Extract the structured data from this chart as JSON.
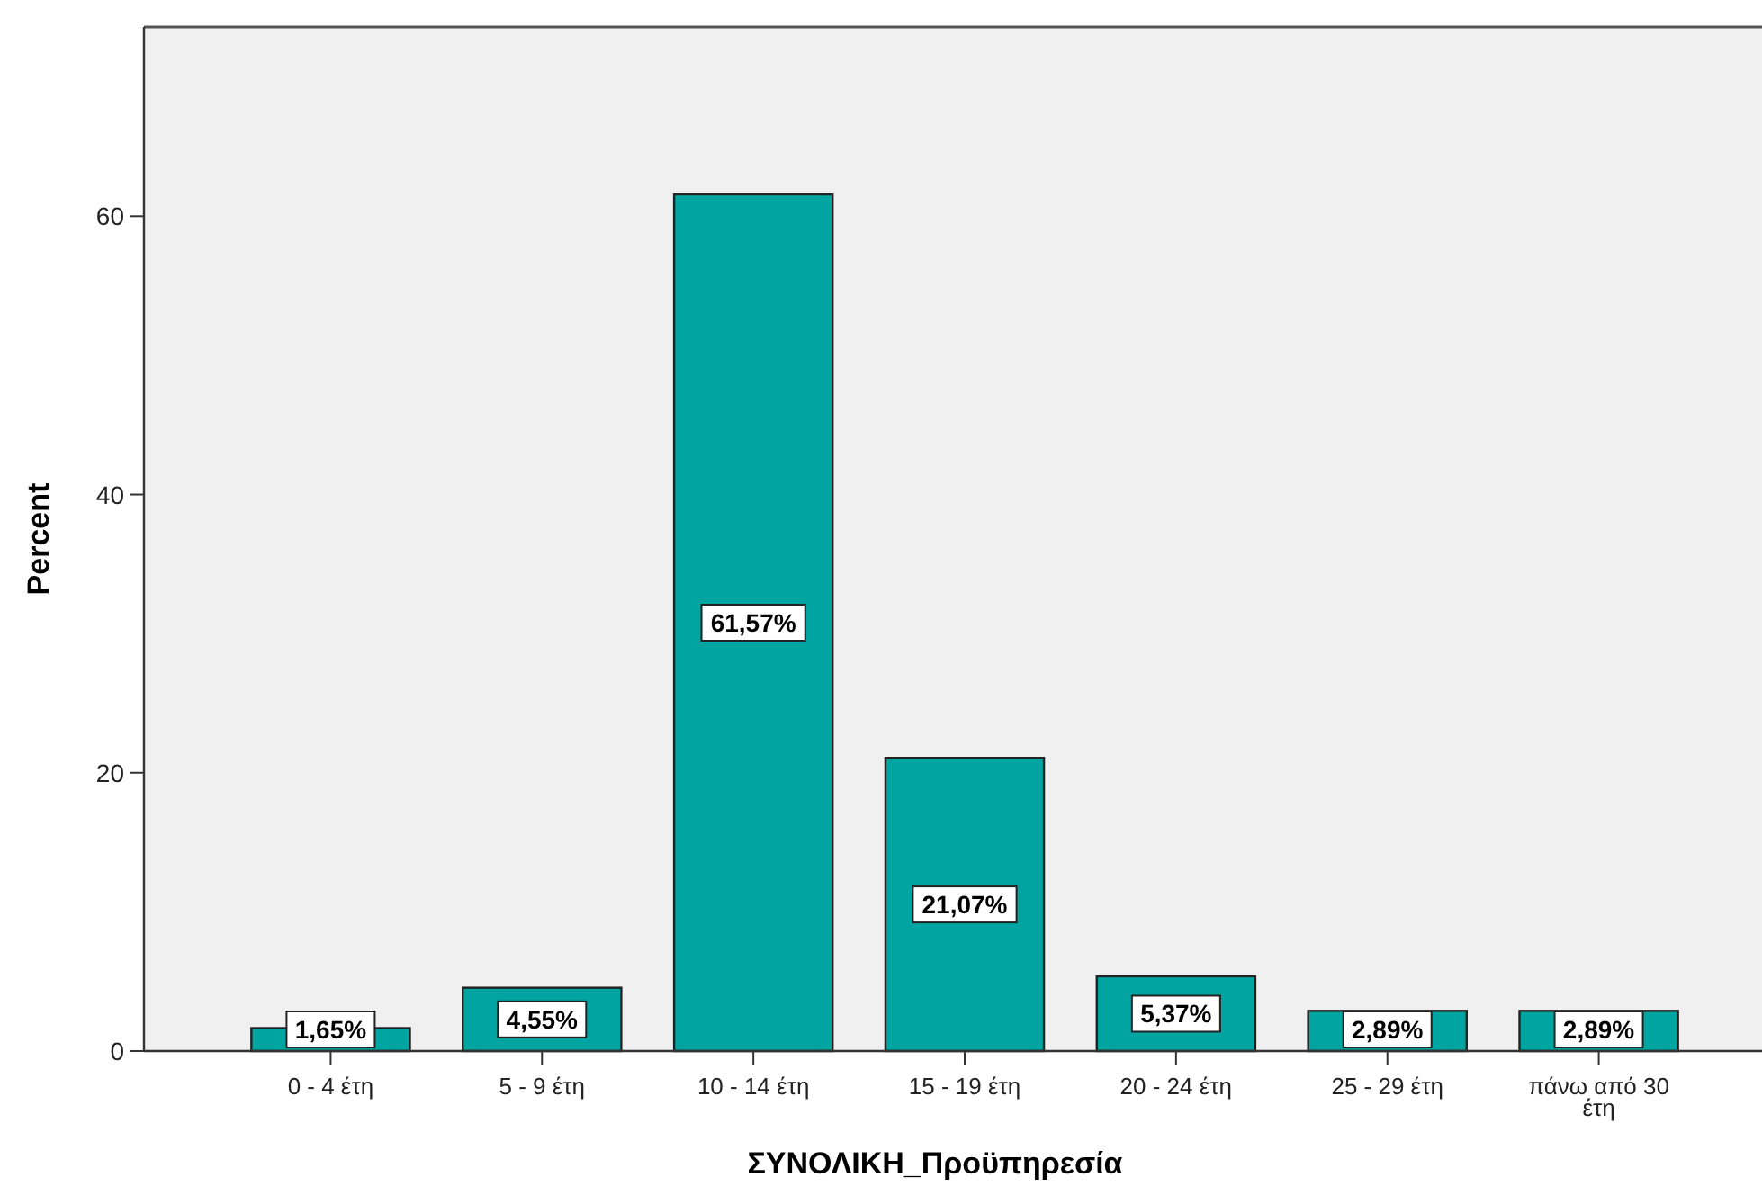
{
  "chart_data": {
    "type": "bar",
    "xlabel": "ΣΥΝΟΛΙΚΗ_Προϋπηρεσία",
    "ylabel": "Percent",
    "categories": [
      "0 - 4 έτη",
      "5 - 9 έτη",
      "10 - 14 έτη",
      "15 - 19 έτη",
      "20 - 24 έτη",
      "25 - 29 έτη",
      "πάνω από 30 έτη"
    ],
    "values": [
      1.65,
      4.55,
      61.57,
      21.07,
      5.37,
      2.89,
      2.89
    ],
    "value_labels": [
      "1,65%",
      "4,55%",
      "61,57%",
      "21,07%",
      "5,37%",
      "2,89%",
      "2,89%"
    ],
    "color": "#00a5a1",
    "ylim": [
      0,
      73.6
    ],
    "yticks": [
      0,
      20,
      40,
      60
    ],
    "grid": false
  }
}
